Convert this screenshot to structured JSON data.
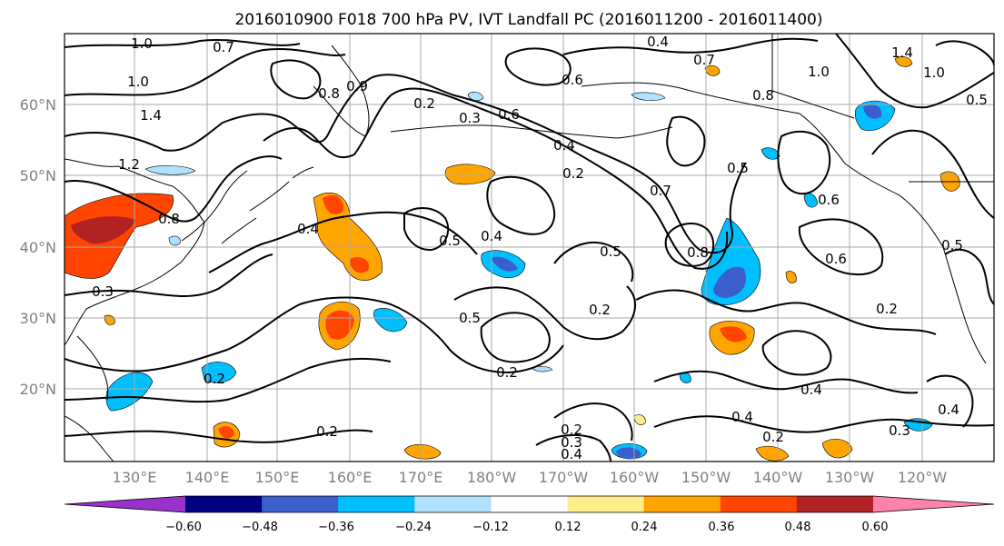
{
  "title": "2016010900 F018 700 hPa PV, IVT Landfall PC (2016011200 - 2016011400)",
  "lat_ticks": [
    "60°N",
    "50°N",
    "40°N",
    "30°N",
    "20°N"
  ],
  "lon_ticks": [
    "130°E",
    "140°E",
    "150°E",
    "160°E",
    "170°E",
    "180°W",
    "170°W",
    "160°W",
    "150°W",
    "140°W",
    "130°W",
    "120°W"
  ],
  "colorbar": {
    "ticks": [
      "−0.60",
      "−0.48",
      "−0.36",
      "−0.24",
      "−0.12",
      "0.12",
      "0.24",
      "0.36",
      "0.48",
      "0.60"
    ],
    "colors": [
      "#9932cc",
      "#000080",
      "#3a5fcd",
      "#00bfff",
      "#b0e2ff",
      "#ffffff",
      "#ffec8b",
      "#ffa500",
      "#ff4500",
      "#b22222",
      "#ff82ab"
    ]
  },
  "contour_labels": [
    "1.0",
    "0.7",
    "0.4",
    "0.7",
    "1.4",
    "1.0",
    "1.0",
    "0.6",
    "1.4",
    "0.8",
    "0.9",
    "0.2",
    "0.3",
    "0.6",
    "0.5",
    "0.8",
    "1.0",
    "1.2",
    "0.4",
    "0.2",
    "0.7",
    "0.5",
    "0.6",
    "0.8",
    "0.4",
    "0.5",
    "0.4",
    "0.5",
    "0.2",
    "0.8",
    "0.6",
    "0.5",
    "0.3",
    "0.2",
    "0.5",
    "0.2",
    "0.2",
    "0.2",
    "0.4",
    "0.4",
    "0.3",
    "0.4",
    "0.2",
    "0.3",
    "0.4",
    "0.2"
  ]
}
